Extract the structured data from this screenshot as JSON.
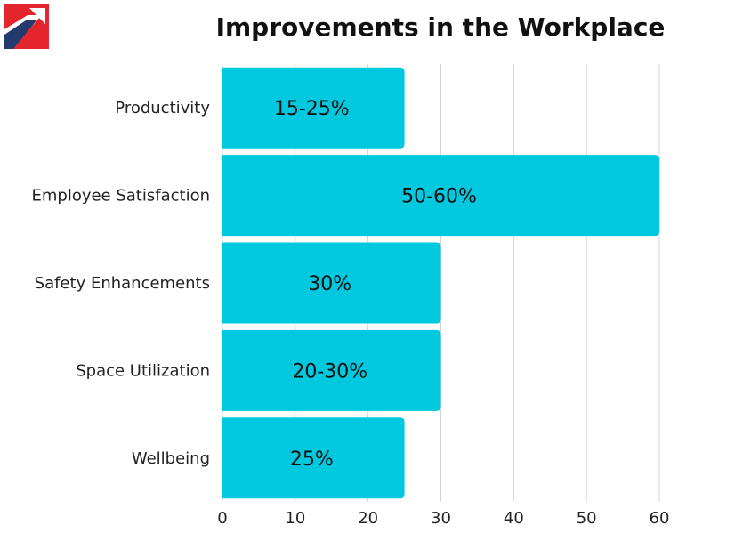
{
  "title": "Improvements in the Workplace",
  "logo": {
    "icon": "union-jack-style-logo-icon",
    "colors": {
      "red": "#e3262e",
      "navy": "#233a6e",
      "white": "#ffffff"
    }
  },
  "colors": {
    "bar": "#00c8de",
    "grid": "#d4d4d4",
    "text": "#222222"
  },
  "chart_data": {
    "type": "bar",
    "orientation": "horizontal",
    "title": "Improvements in the Workplace",
    "categories": [
      "Productivity",
      "Employee Satisfaction",
      "Safety Enhancements",
      "Space Utilization",
      "Wellbeing"
    ],
    "values": [
      25,
      60,
      30,
      30,
      25
    ],
    "data_labels": [
      "15-25%",
      "50-60%",
      "30%",
      "20-30%",
      "25%"
    ],
    "xticks": [
      0,
      10,
      20,
      30,
      40,
      50,
      60
    ],
    "xlim": [
      0,
      60
    ],
    "grid": "vertical",
    "xlabel": "",
    "ylabel": ""
  }
}
